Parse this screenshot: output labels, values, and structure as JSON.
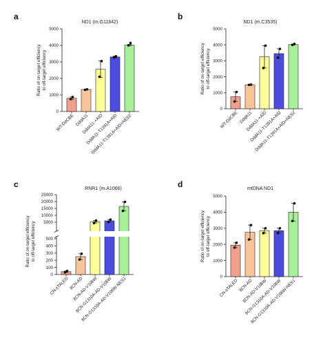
{
  "panels": [
    {
      "letter": "a",
      "title": "ND1 (m.G11642)"
    },
    {
      "letter": "b",
      "title": "ND1 (m.C3535)"
    },
    {
      "letter": "c",
      "title": "RNR1 (m.A1066)"
    },
    {
      "letter": "d",
      "title": "mtDNA ND1"
    }
  ],
  "colors": {
    "salmon": "#f0a08c",
    "peach": "#f8c49a",
    "yellow": "#ffff99",
    "blue": "#4c4ce0",
    "green": "#a8f098",
    "outline": "#222222",
    "point": "#111111"
  },
  "chart_data": [
    {
      "type": "bar",
      "title": "ND1 (m.G11642)",
      "ylabel": [
        "Ratio of on-target efficiency",
        "to off-target efficiency"
      ],
      "ylim": [
        0,
        5000
      ],
      "yticks": [
        0,
        1000,
        2000,
        3000,
        4000,
        5000
      ],
      "categories": [
        "WT-DdCBE",
        "DddA11",
        "DddA11-+AID",
        "DddA11-T1391A+AID",
        "DddA11-T1391A+AID+NES2"
      ],
      "values": [
        800,
        1330,
        2560,
        3300,
        4020
      ],
      "errors": [
        80,
        20,
        500,
        50,
        40
      ],
      "points": [
        [
          750,
          880
        ],
        [
          1310,
          1340
        ],
        [
          2100,
          3050
        ],
        [
          3270,
          3340
        ],
        [
          4000,
          4150
        ]
      ],
      "colors": [
        "salmon",
        "peach",
        "yellow",
        "blue",
        "green"
      ]
    },
    {
      "type": "bar",
      "title": "ND1 (m.C3535)",
      "ylabel": [
        "Ratio of on-target efficiency",
        "to off-target efficiency"
      ],
      "ylim": [
        0,
        5000
      ],
      "yticks": [
        0,
        1000,
        2000,
        3000,
        4000,
        5000
      ],
      "categories": [
        "WT-DdCBE",
        "DddA11",
        "DddA11-+AID",
        "DddA11-T1391A+AID",
        "DddA11-T1391A+AID+NES2"
      ],
      "values": [
        750,
        1500,
        3250,
        3450,
        4020
      ],
      "errors": [
        300,
        20,
        700,
        300,
        30
      ],
      "points": [
        [
          450,
          1050
        ],
        [
          1490,
          1510
        ],
        [
          2550,
          3950
        ],
        [
          3200,
          3750
        ],
        [
          4000,
          4060
        ]
      ],
      "colors": [
        "salmon",
        "peach",
        "yellow",
        "blue",
        "green"
      ]
    },
    {
      "type": "bar",
      "title": "RNR1 (m.A1066)",
      "ylabel": [
        "Ratio of on-target efficiency",
        "to off-target efficiency"
      ],
      "broken_axis": true,
      "lower_ylim": [
        0,
        500
      ],
      "lower_yticks": [
        0,
        100,
        200,
        300,
        400,
        500
      ],
      "upper_ylim": [
        0,
        25000
      ],
      "upper_yticks": [
        5000,
        10000,
        15000,
        20000,
        25000
      ],
      "categories": [
        "CN-sTALED",
        "8CN-AD",
        "8CN-AD-V106W",
        "8CN-G1310A-AD-V106W",
        "8CN-G1310A-AD-V106W-NES1"
      ],
      "values": [
        40,
        250,
        5300,
        6000,
        16500
      ],
      "errors": [
        10,
        40,
        900,
        900,
        3300
      ],
      "points": [
        [
          30,
          50
        ],
        [
          210,
          290
        ],
        [
          4400,
          6200
        ],
        [
          5100,
          6900
        ],
        [
          13200,
          19800
        ]
      ],
      "colors": [
        "salmon",
        "peach",
        "yellow",
        "blue",
        "green"
      ]
    },
    {
      "type": "bar",
      "title": "mtDNA ND1",
      "ylabel": [
        "Ratio of on-target efficiency",
        "to off-target efficiency"
      ],
      "ylim": [
        0,
        5000
      ],
      "yticks": [
        0,
        1000,
        2000,
        3000,
        4000,
        5000
      ],
      "categories": [
        "CN-sTALED",
        "8CN-AD",
        "8CN-AD-V106W",
        "8CN-G1310A-AD-V106W",
        "8CN-G1310A-AD-V106W-NES1"
      ],
      "values": [
        1950,
        2750,
        2850,
        2850,
        4000
      ],
      "errors": [
        150,
        450,
        150,
        150,
        550
      ],
      "points": [
        [
          1800,
          2100
        ],
        [
          2300,
          3200
        ],
        [
          2700,
          3000
        ],
        [
          2700,
          3000
        ],
        [
          3450,
          4550
        ]
      ],
      "colors": [
        "salmon",
        "peach",
        "yellow",
        "blue",
        "green"
      ]
    }
  ]
}
